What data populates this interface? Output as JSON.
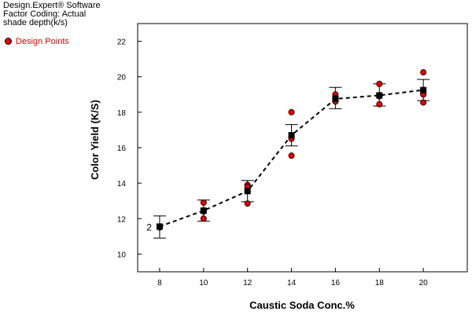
{
  "header": {
    "lines": [
      "Design.Expert® Software",
      "Factor Coding: Actual",
      "shade depth(k/s)"
    ]
  },
  "legend": {
    "design_points_label": "Design Points"
  },
  "colors": {
    "design_point": "#e00000",
    "prediction": "#000000",
    "line": "#000000"
  },
  "chart_data": {
    "type": "line",
    "xlabel": "Caustic Soda Conc.%",
    "ylabel": "Color Yield (K/S)",
    "xlim": [
      7,
      22
    ],
    "ylim": [
      9,
      23
    ],
    "x_ticks": [
      8,
      10,
      12,
      14,
      16,
      18,
      20
    ],
    "y_ticks": [
      10,
      12,
      14,
      16,
      18,
      20,
      22
    ],
    "prediction": {
      "x": [
        8,
        10,
        12,
        14,
        16,
        18,
        20
      ],
      "y": [
        11.55,
        12.45,
        13.55,
        16.7,
        18.75,
        18.95,
        19.25
      ],
      "lower": [
        10.9,
        11.85,
        12.95,
        16.1,
        18.2,
        18.35,
        18.65
      ],
      "upper": [
        12.15,
        13.05,
        14.15,
        17.3,
        19.4,
        19.6,
        19.85
      ]
    },
    "design_points": [
      {
        "x": 8,
        "y": 11.5,
        "label": "2"
      },
      {
        "x": 10,
        "y": 12.9
      },
      {
        "x": 10,
        "y": 12.0
      },
      {
        "x": 10,
        "y": 12.4
      },
      {
        "x": 12,
        "y": 13.9
      },
      {
        "x": 12,
        "y": 13.8
      },
      {
        "x": 12,
        "y": 12.85
      },
      {
        "x": 14,
        "y": 18.0
      },
      {
        "x": 14,
        "y": 16.5
      },
      {
        "x": 14,
        "y": 15.55
      },
      {
        "x": 16,
        "y": 19.0
      },
      {
        "x": 16,
        "y": 18.8
      },
      {
        "x": 16,
        "y": 18.6
      },
      {
        "x": 18,
        "y": 19.6
      },
      {
        "x": 18,
        "y": 18.9
      },
      {
        "x": 18,
        "y": 18.45
      },
      {
        "x": 20,
        "y": 20.25
      },
      {
        "x": 20,
        "y": 19.0
      },
      {
        "x": 20,
        "y": 18.55
      }
    ]
  }
}
